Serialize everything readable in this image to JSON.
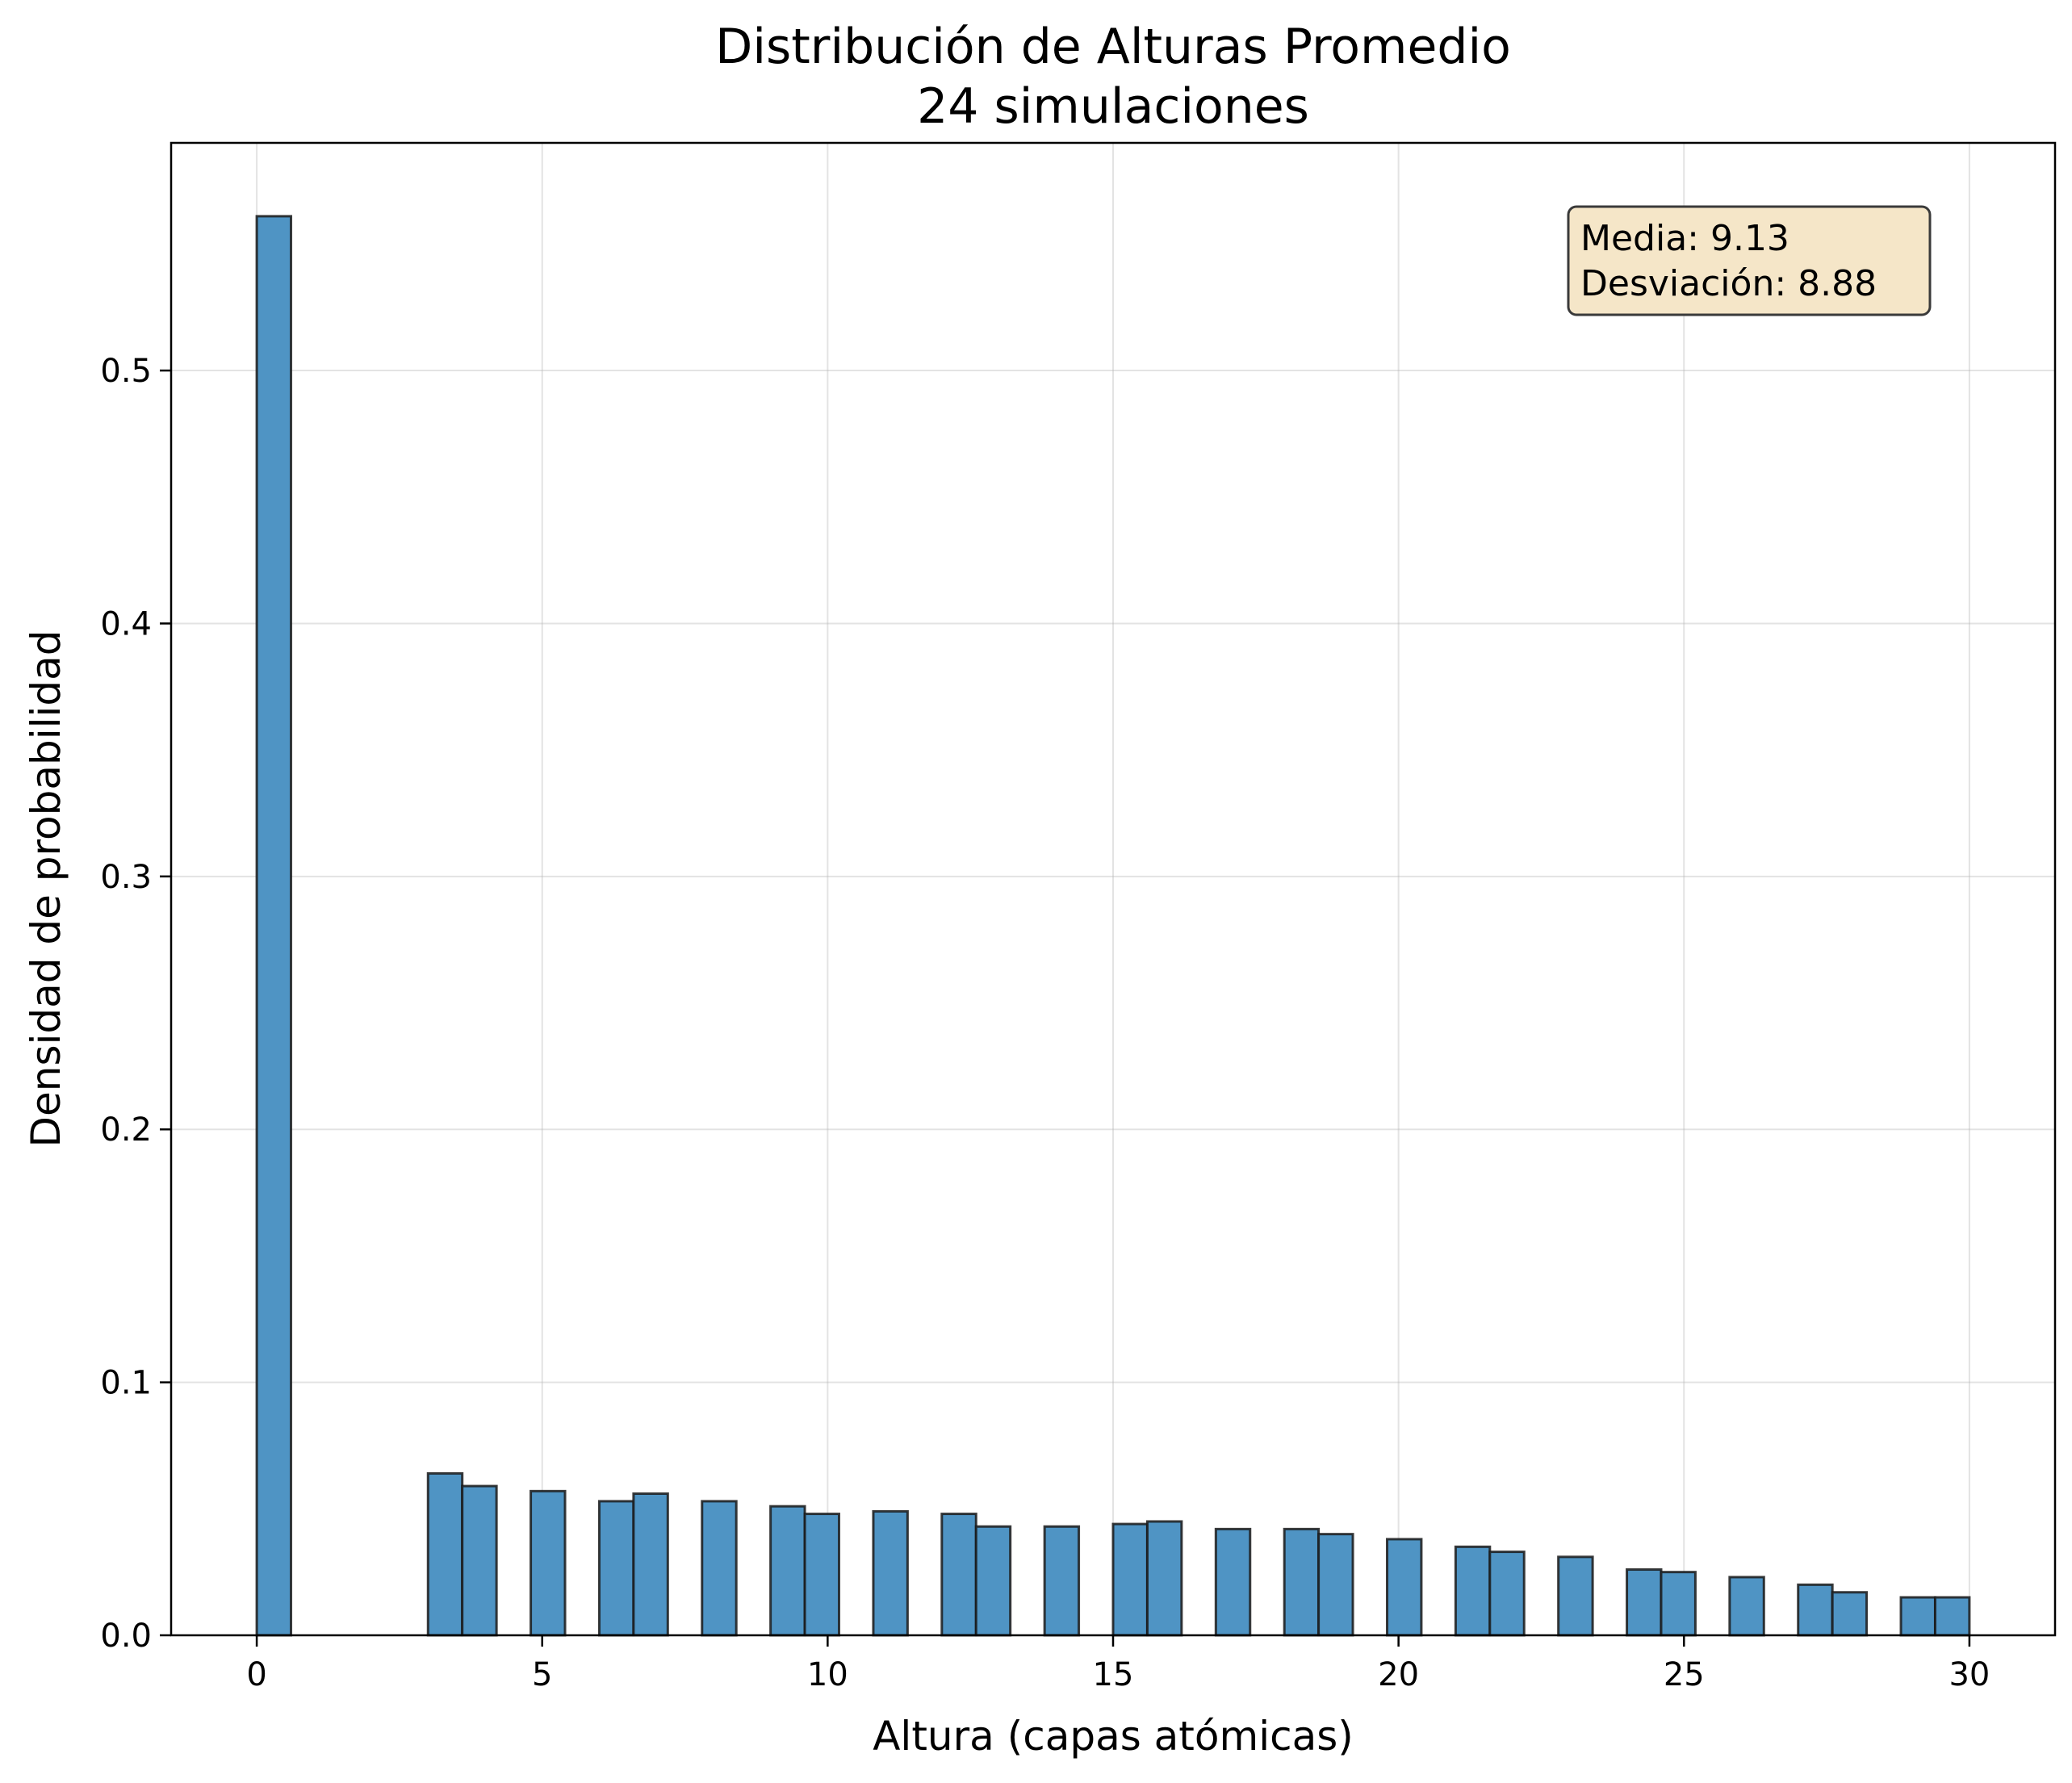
{
  "chart_data": {
    "type": "bar",
    "title": "Distribución de Alturas Promedio",
    "subtitle": "24 simulaciones",
    "xlabel": "Altura (capas atómicas)",
    "ylabel": "Densidad de probabilidad",
    "xlim": [
      -1.5,
      31.5
    ],
    "ylim": [
      0,
      0.59
    ],
    "xticks": [
      0,
      5,
      10,
      15,
      20,
      25,
      30
    ],
    "xtick_labels": [
      "0",
      "5",
      "10",
      "15",
      "20",
      "25",
      "30"
    ],
    "yticks": [
      0.0,
      0.1,
      0.2,
      0.3,
      0.4,
      0.5
    ],
    "ytick_labels": [
      "0.0",
      "0.1",
      "0.2",
      "0.3",
      "0.4",
      "0.5"
    ],
    "grid": true,
    "bar_color": "#4f94c4",
    "bar_edge_color": "#1a1a1a",
    "bins": [
      {
        "x0": 0.0,
        "x1": 0.6,
        "value": 0.561
      },
      {
        "x0": 3.0,
        "x1": 3.6,
        "value": 0.064
      },
      {
        "x0": 3.6,
        "x1": 4.2,
        "value": 0.059
      },
      {
        "x0": 4.8,
        "x1": 5.4,
        "value": 0.057
      },
      {
        "x0": 6.0,
        "x1": 6.6,
        "value": 0.053
      },
      {
        "x0": 6.6,
        "x1": 7.2,
        "value": 0.056
      },
      {
        "x0": 7.8,
        "x1": 8.4,
        "value": 0.053
      },
      {
        "x0": 9.0,
        "x1": 9.6,
        "value": 0.051
      },
      {
        "x0": 9.6,
        "x1": 10.2,
        "value": 0.048
      },
      {
        "x0": 10.8,
        "x1": 11.4,
        "value": 0.049
      },
      {
        "x0": 12.0,
        "x1": 12.6,
        "value": 0.048
      },
      {
        "x0": 12.6,
        "x1": 13.2,
        "value": 0.043
      },
      {
        "x0": 13.8,
        "x1": 14.4,
        "value": 0.043
      },
      {
        "x0": 15.0,
        "x1": 15.6,
        "value": 0.044
      },
      {
        "x0": 15.6,
        "x1": 16.2,
        "value": 0.045
      },
      {
        "x0": 16.8,
        "x1": 17.4,
        "value": 0.042
      },
      {
        "x0": 18.0,
        "x1": 18.6,
        "value": 0.042
      },
      {
        "x0": 18.6,
        "x1": 19.2,
        "value": 0.04
      },
      {
        "x0": 19.8,
        "x1": 20.4,
        "value": 0.038
      },
      {
        "x0": 21.0,
        "x1": 21.6,
        "value": 0.035
      },
      {
        "x0": 21.6,
        "x1": 22.2,
        "value": 0.033
      },
      {
        "x0": 22.8,
        "x1": 23.4,
        "value": 0.031
      },
      {
        "x0": 24.0,
        "x1": 24.6,
        "value": 0.026
      },
      {
        "x0": 24.6,
        "x1": 25.2,
        "value": 0.025
      },
      {
        "x0": 25.8,
        "x1": 26.4,
        "value": 0.023
      },
      {
        "x0": 27.0,
        "x1": 27.6,
        "value": 0.02
      },
      {
        "x0": 27.6,
        "x1": 28.2,
        "value": 0.017
      },
      {
        "x0": 28.8,
        "x1": 29.4,
        "value": 0.015
      },
      {
        "x0": 29.4,
        "x1": 30.0,
        "value": 0.015
      }
    ],
    "stats_box": {
      "line1": "Media: 9.13",
      "line2": "Desviación: 8.88",
      "placement": "top-right",
      "background": "#f5e6c8"
    }
  }
}
